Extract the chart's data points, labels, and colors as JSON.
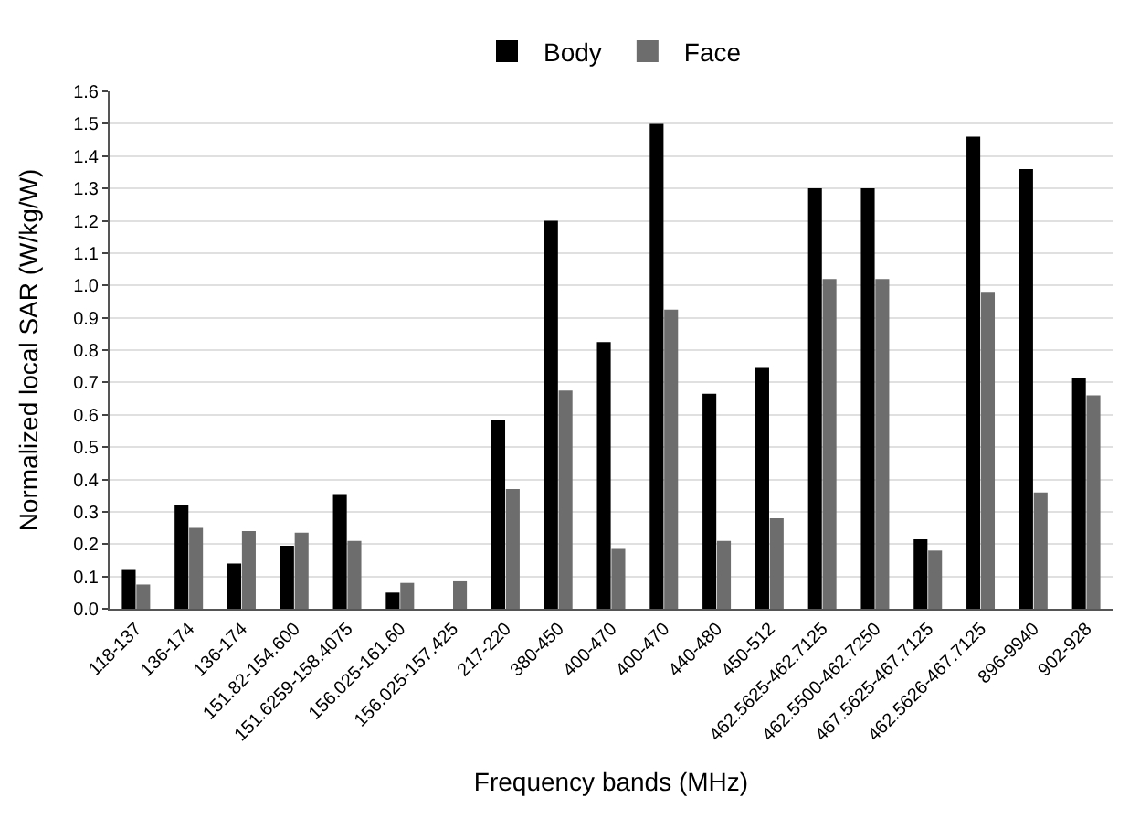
{
  "chart_data": {
    "type": "bar",
    "xlabel": "Frequency bands (MHz)",
    "ylabel": "Normalized local SAR (W/kg/W)",
    "categories": [
      "118-137",
      "136-174",
      "136-174",
      "151.82-154.600",
      "151.6259-158.4075",
      "156.025-161.60",
      "156.025-157.425",
      "217-220",
      "380-450",
      "400-470",
      "400-470",
      "440-480",
      "450-512",
      "462.5625-462.7125",
      "462.5500-462.7250",
      "467.5625-467.7125",
      "462.5626-467.7125",
      "896-9940",
      "902-928"
    ],
    "series": [
      {
        "name": "Body",
        "color": "#000000",
        "values": [
          0.12,
          0.32,
          0.14,
          0.195,
          0.355,
          0.05,
          null,
          0.585,
          1.2,
          0.825,
          1.5,
          0.665,
          0.745,
          1.3,
          1.3,
          0.215,
          1.46,
          1.36,
          0.715
        ]
      },
      {
        "name": "Face",
        "color": "#6d6d6d",
        "values": [
          0.075,
          0.25,
          0.24,
          0.235,
          0.21,
          0.08,
          0.085,
          0.37,
          0.675,
          0.185,
          0.925,
          0.21,
          0.28,
          1.02,
          1.02,
          0.18,
          0.98,
          0.36,
          0.66
        ]
      }
    ],
    "ylim": [
      0,
      1.6
    ],
    "yticks": [
      {
        "value": 0,
        "label": "0.0"
      },
      {
        "value": 0.1,
        "label": "0.1"
      },
      {
        "value": 0.2,
        "label": "0.2"
      },
      {
        "value": 0.3,
        "label": "0.3"
      },
      {
        "value": 0.4,
        "label": "0.4"
      },
      {
        "value": 0.5,
        "label": "0.5"
      },
      {
        "value": 0.6,
        "label": "0.6"
      },
      {
        "value": 0.7,
        "label": "0.7"
      },
      {
        "value": 0.8,
        "label": "0.8"
      },
      {
        "value": 0.9,
        "label": "0.9"
      },
      {
        "value": 1,
        "label": "1.0"
      },
      {
        "value": 1.1,
        "label": "1.1"
      },
      {
        "value": 1.2,
        "label": "1.2"
      },
      {
        "value": 1.3,
        "label": "1.3"
      },
      {
        "value": 1.4,
        "label": "1.4"
      },
      {
        "value": 1.5,
        "label": "1.5"
      },
      {
        "value": 1.6,
        "label": "1.6"
      }
    ],
    "grid": "y",
    "legend": "top"
  }
}
